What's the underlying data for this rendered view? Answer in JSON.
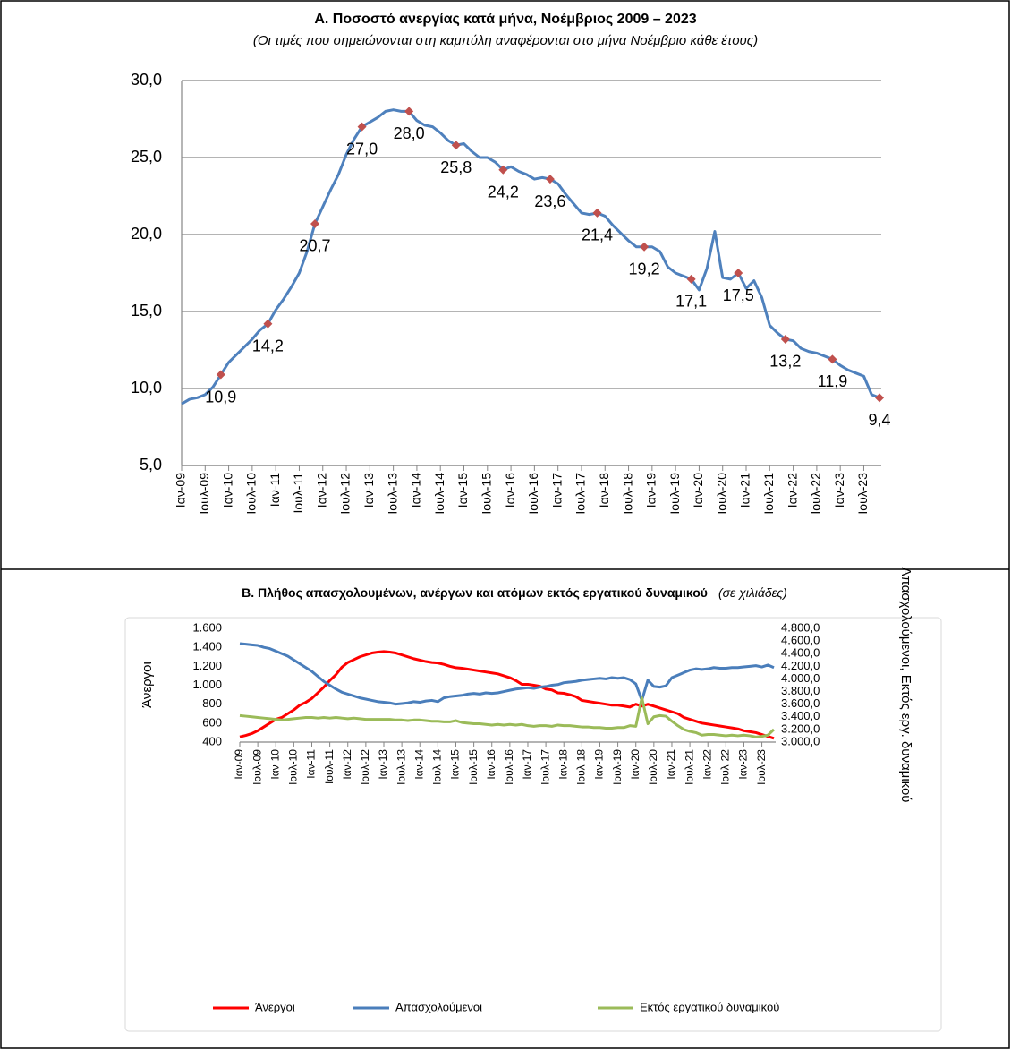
{
  "chart_data": [
    {
      "type": "line",
      "title": "Α. Ποσοστό ανεργίας κατά μήνα, Νοέμβριος 2009 – 2023",
      "subtitle": "(Οι τιμές που σημειώνονται στη καμπύλη αναφέρονται στο μήνα Νοέμβριο κάθε έτους)",
      "categories": [
        "Ιαν-09",
        null,
        null,
        "Ιουλ-09",
        null,
        null,
        "Ιαν-10",
        null,
        null,
        "Ιουλ-10",
        null,
        null,
        "Ιαν-11",
        null,
        null,
        "Ιουλ-11",
        null,
        null,
        "Ιαν-12",
        null,
        null,
        "Ιουλ-12",
        null,
        null,
        "Ιαν-13",
        null,
        null,
        "Ιουλ-13",
        null,
        null,
        "Ιαν-14",
        null,
        null,
        "Ιουλ-14",
        null,
        null,
        "Ιαν-15",
        null,
        null,
        "Ιουλ-15",
        null,
        null,
        "Ιαν-16",
        null,
        null,
        "Ιουλ-16",
        null,
        null,
        "Ιαν-17",
        null,
        null,
        "Ιουλ-17",
        null,
        null,
        "Ιαν-18",
        null,
        null,
        "Ιουλ-18",
        null,
        null,
        "Ιαν-19",
        null,
        null,
        "Ιουλ-19",
        null,
        null,
        "Ιαν-20",
        null,
        null,
        "Ιουλ-20",
        null,
        null,
        "Ιαν-21",
        null,
        null,
        "Ιουλ-21",
        null,
        null,
        "Ιαν-22",
        null,
        null,
        "Ιουλ-22",
        null,
        null,
        "Ιαν-23",
        null,
        null,
        "Ιουλ-23",
        null,
        null
      ],
      "series": [
        {
          "color": "#4f81bd",
          "marker_color": "#c0504d",
          "values": [
            9.0,
            9.3,
            9.4,
            9.6,
            10.1,
            10.9,
            11.7,
            12.2,
            12.7,
            13.2,
            13.8,
            14.2,
            15.1,
            15.8,
            16.6,
            17.5,
            18.9,
            20.7,
            21.8,
            22.9,
            23.9,
            25.2,
            26.2,
            27.0,
            27.3,
            27.6,
            28.0,
            28.1,
            28.0,
            28.0,
            27.4,
            27.1,
            27.0,
            26.6,
            26.1,
            25.8,
            25.9,
            25.4,
            25.0,
            25.0,
            24.7,
            24.2,
            24.4,
            24.1,
            23.9,
            23.6,
            23.7,
            23.6,
            23.3,
            22.6,
            22.0,
            21.4,
            21.3,
            21.4,
            21.2,
            20.6,
            20.1,
            19.6,
            19.2,
            19.2,
            19.2,
            18.9,
            17.9,
            17.5,
            17.3,
            17.1,
            16.4,
            17.8,
            20.2,
            17.2,
            17.1,
            17.5,
            16.5,
            17.0,
            15.9,
            14.1,
            13.6,
            13.2,
            13.1,
            12.6,
            12.4,
            12.3,
            12.1,
            11.9,
            11.5,
            11.2,
            11.0,
            10.8,
            9.6,
            9.4
          ],
          "value_labels": [
            null,
            null,
            null,
            null,
            null,
            "10,9",
            null,
            null,
            null,
            null,
            null,
            "14,2",
            null,
            null,
            null,
            null,
            null,
            "20,7",
            null,
            null,
            null,
            null,
            null,
            "27,0",
            null,
            null,
            null,
            null,
            null,
            "28,0",
            null,
            null,
            null,
            null,
            null,
            "25,8",
            null,
            null,
            null,
            null,
            null,
            "24,2",
            null,
            null,
            null,
            null,
            null,
            "23,6",
            null,
            null,
            null,
            null,
            null,
            "21,4",
            null,
            null,
            null,
            null,
            null,
            "19,2",
            null,
            null,
            null,
            null,
            null,
            "17,1",
            null,
            null,
            null,
            null,
            null,
            "17,5",
            null,
            null,
            null,
            null,
            null,
            "13,2",
            null,
            null,
            null,
            null,
            null,
            "11,9",
            null,
            null,
            null,
            null,
            null,
            "9,4"
          ]
        }
      ],
      "ylim": [
        5,
        30
      ],
      "yticks": [
        {
          "value": 5,
          "label": "5,0"
        },
        {
          "value": 10,
          "label": "10,0"
        },
        {
          "value": 15,
          "label": "15,0"
        },
        {
          "value": 20,
          "label": "20,0"
        },
        {
          "value": 25,
          "label": "25,0"
        },
        {
          "value": 30,
          "label": "30,0"
        }
      ],
      "grid": true
    },
    {
      "type": "line",
      "title": "Β. Πλήθος απασχολουμένων, ανέργων και ατόμων εκτός εργατικού δυναμικού",
      "subtitle": "(σε χιλιάδες)",
      "ylabel": "Άνεργοι",
      "y2label": "Απασχολούμενοι, Εκτός εργ. δυναμικού",
      "categories": [
        "Ιαν-09",
        null,
        null,
        "Ιουλ-09",
        null,
        null,
        "Ιαν-10",
        null,
        null,
        "Ιουλ-10",
        null,
        null,
        "Ιαν-11",
        null,
        null,
        "Ιουλ-11",
        null,
        null,
        "Ιαν-12",
        null,
        null,
        "Ιουλ-12",
        null,
        null,
        "Ιαν-13",
        null,
        null,
        "Ιουλ-13",
        null,
        null,
        "Ιαν-14",
        null,
        null,
        "Ιουλ-14",
        null,
        null,
        "Ιαν-15",
        null,
        null,
        "Ιουλ-15",
        null,
        null,
        "Ιαν-16",
        null,
        null,
        "Ιουλ-16",
        null,
        null,
        "Ιαν-17",
        null,
        null,
        "Ιουλ-17",
        null,
        null,
        "Ιαν-18",
        null,
        null,
        "Ιουλ-18",
        null,
        null,
        "Ιαν-19",
        null,
        null,
        "Ιουλ-19",
        null,
        null,
        "Ιαν-20",
        null,
        null,
        "Ιουλ-20",
        null,
        null,
        "Ιαν-21",
        null,
        null,
        "Ιουλ-21",
        null,
        null,
        "Ιαν-22",
        null,
        null,
        "Ιουλ-22",
        null,
        null,
        "Ιαν-23",
        null,
        null,
        "Ιουλ-23",
        null,
        null
      ],
      "series": [
        {
          "name": "Άνεργοι",
          "color": "#ff0000",
          "values": [
            455,
            470,
            490,
            520,
            560,
            600,
            640,
            660,
            700,
            740,
            790,
            820,
            860,
            920,
            980,
            1050,
            1110,
            1190,
            1240,
            1270,
            1300,
            1320,
            1340,
            1350,
            1355,
            1350,
            1340,
            1320,
            1300,
            1280,
            1265,
            1250,
            1240,
            1235,
            1220,
            1200,
            1185,
            1180,
            1170,
            1160,
            1150,
            1140,
            1130,
            1120,
            1100,
            1080,
            1050,
            1010,
            1010,
            1000,
            990,
            960,
            950,
            920,
            915,
            900,
            880,
            840,
            830,
            820,
            810,
            800,
            790,
            790,
            780,
            770,
            800,
            780,
            800,
            780,
            760,
            740,
            720,
            700,
            660,
            640,
            620,
            600,
            590,
            580,
            570,
            560,
            550,
            540,
            520,
            510,
            500,
            480,
            460,
            440
          ]
        },
        {
          "name": "Απασχολούμενοι",
          "color": "#4a7ebb",
          "axis": "y2",
          "values": [
            4560,
            4550,
            4540,
            4530,
            4500,
            4480,
            4440,
            4400,
            4360,
            4300,
            4240,
            4180,
            4120,
            4040,
            3960,
            3900,
            3840,
            3790,
            3760,
            3730,
            3700,
            3680,
            3660,
            3640,
            3630,
            3620,
            3600,
            3610,
            3620,
            3640,
            3630,
            3650,
            3660,
            3640,
            3700,
            3720,
            3730,
            3740,
            3760,
            3770,
            3760,
            3780,
            3770,
            3780,
            3800,
            3820,
            3840,
            3850,
            3860,
            3850,
            3870,
            3880,
            3900,
            3910,
            3940,
            3950,
            3960,
            3980,
            3990,
            4000,
            4010,
            4000,
            4020,
            4010,
            4020,
            3990,
            3920,
            3660,
            3980,
            3880,
            3870,
            3890,
            4020,
            4060,
            4100,
            4140,
            4160,
            4150,
            4160,
            4180,
            4170,
            4170,
            4180,
            4180,
            4190,
            4200,
            4210,
            4190,
            4220,
            4180
          ]
        },
        {
          "name": "Εκτός εργατικού δυναμικού",
          "color": "#9bbb59",
          "axis": "y2",
          "values": [
            3420,
            3410,
            3400,
            3390,
            3380,
            3370,
            3360,
            3350,
            3360,
            3370,
            3380,
            3390,
            3390,
            3380,
            3390,
            3380,
            3390,
            3380,
            3370,
            3380,
            3370,
            3360,
            3360,
            3360,
            3360,
            3360,
            3350,
            3350,
            3340,
            3350,
            3350,
            3340,
            3330,
            3330,
            3320,
            3320,
            3340,
            3310,
            3300,
            3290,
            3290,
            3280,
            3270,
            3280,
            3270,
            3280,
            3270,
            3280,
            3260,
            3250,
            3260,
            3260,
            3250,
            3270,
            3260,
            3260,
            3250,
            3240,
            3240,
            3230,
            3230,
            3220,
            3220,
            3230,
            3230,
            3260,
            3250,
            3700,
            3290,
            3400,
            3420,
            3410,
            3330,
            3260,
            3200,
            3170,
            3150,
            3110,
            3120,
            3120,
            3110,
            3100,
            3110,
            3100,
            3110,
            3100,
            3080,
            3090,
            3110,
            3200
          ]
        }
      ],
      "ylim": [
        400,
        1600
      ],
      "yticks": [
        400,
        600,
        800,
        {
          "value": 1000,
          "label": "1.000"
        },
        {
          "value": 1200,
          "label": "1.200"
        },
        {
          "value": 1400,
          "label": "1.400"
        },
        {
          "value": 1600,
          "label": "1.600"
        }
      ],
      "y2lim": [
        3000,
        4800
      ],
      "y2ticks": [
        {
          "value": 3000,
          "label": "3.000,0"
        },
        {
          "value": 3200,
          "label": "3.200,0"
        },
        {
          "value": 3400,
          "label": "3.400,0"
        },
        {
          "value": 3600,
          "label": "3.600,0"
        },
        {
          "value": 3800,
          "label": "3.800,0"
        },
        {
          "value": 4000,
          "label": "4.000,0"
        },
        {
          "value": 4200,
          "label": "4.200,0"
        },
        {
          "value": 4400,
          "label": "4.400,0"
        },
        {
          "value": 4600,
          "label": "4.600,0"
        },
        {
          "value": 4800,
          "label": "4.800,0"
        }
      ],
      "grid": false,
      "legend": "bottom"
    }
  ]
}
